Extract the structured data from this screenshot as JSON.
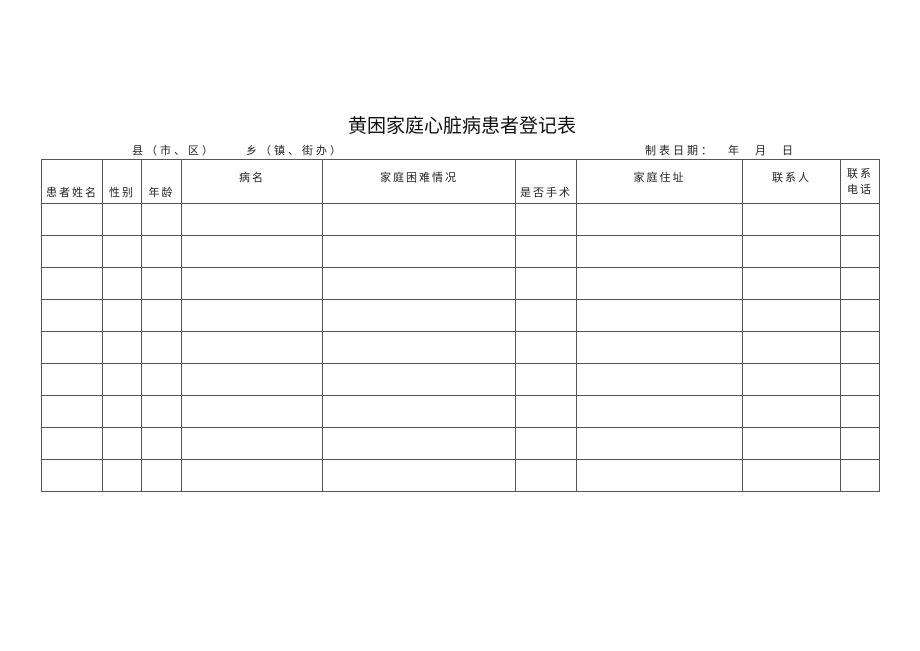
{
  "title": "黄困家庭心脏病患者登记表",
  "county_label": "县（市、区）",
  "township_label": "乡（镇、街办）",
  "date_label": "制表日期：  年  月  日",
  "columns": [
    "患者姓名",
    "性别",
    "年龄",
    "病名",
    "家庭困难情况",
    "是否手术",
    "家庭住址",
    "联系人",
    "联系电话"
  ],
  "row_count": 9
}
